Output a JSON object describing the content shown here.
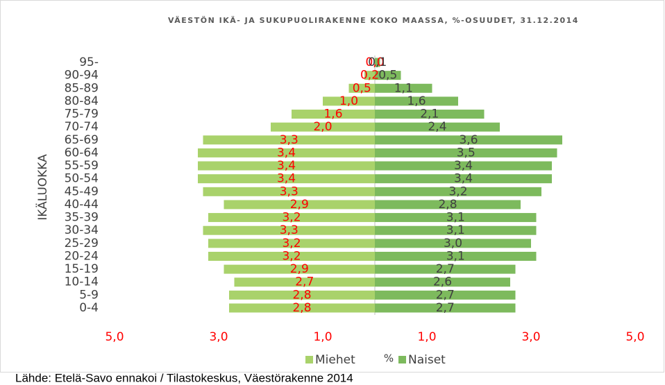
{
  "chart_data": {
    "type": "pyramid",
    "title": "VÄESTÖN IKÄ- JA SUKUPUOLIRAKENNE KOKO MAASSA, %-OSUUDET, 31.12.2014",
    "y_label": "IKÄLUOKKA",
    "x_label": "%",
    "source": "Lähde: Etelä-Savo ennakoi / Tilastokeskus, Väestörakenne 2014",
    "categories": [
      "0-4",
      "5-9",
      "10-14",
      "15-19",
      "20-24",
      "25-29",
      "30-34",
      "35-39",
      "40-44",
      "45-49",
      "50-54",
      "55-59",
      "60-64",
      "65-69",
      "70-74",
      "75-79",
      "80-84",
      "85-89",
      "90-94",
      "95-"
    ],
    "series": [
      {
        "name": "Miehet",
        "color": "#a9d26b",
        "label_color": "#ff0000",
        "side": "left",
        "values": [
          2.8,
          2.8,
          2.7,
          2.9,
          3.2,
          3.2,
          3.3,
          3.2,
          2.9,
          3.3,
          3.4,
          3.4,
          3.4,
          3.3,
          2.0,
          1.6,
          1.0,
          0.5,
          0.2,
          0.0
        ],
        "value_labels": [
          "2,8",
          "2,8",
          "2,7",
          "2,9",
          "3,2",
          "3,2",
          "3,3",
          "3,2",
          "2,9",
          "3,3",
          "3,4",
          "3,4",
          "3,4",
          "3,3",
          "2,0",
          "1,6",
          "1,0",
          "0,5",
          "0,2",
          "0,0"
        ]
      },
      {
        "name": "Naiset",
        "color": "#7dba5d",
        "label_color": "#404040",
        "side": "right",
        "values": [
          2.7,
          2.7,
          2.6,
          2.7,
          3.1,
          3.0,
          3.1,
          3.1,
          2.8,
          3.2,
          3.4,
          3.4,
          3.5,
          3.6,
          2.4,
          2.1,
          1.6,
          1.1,
          0.5,
          0.1
        ],
        "value_labels": [
          "2,7",
          "2,7",
          "2,6",
          "2,7",
          "3,1",
          "3,0",
          "3,1",
          "3,1",
          "2,8",
          "3,2",
          "3,4",
          "3,4",
          "3,5",
          "3,6",
          "2,4",
          "2,1",
          "1,6",
          "1,1",
          "0,5",
          "0,1"
        ]
      }
    ],
    "xlim": [
      -5,
      5
    ],
    "xticks": [
      {
        "value": -5,
        "label": "5,0"
      },
      {
        "value": -3,
        "label": "3,0"
      },
      {
        "value": -1,
        "label": "1,0"
      },
      {
        "value": 1,
        "label": "1,0"
      },
      {
        "value": 3,
        "label": "3,0"
      },
      {
        "value": 5,
        "label": "5,0"
      }
    ],
    "legend": "bottom"
  }
}
